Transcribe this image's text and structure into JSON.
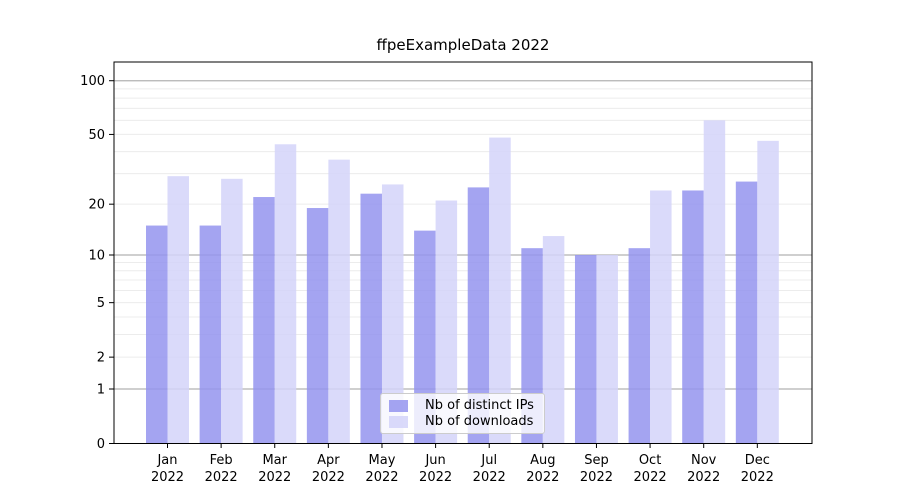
{
  "chart_data": {
    "type": "bar",
    "title": "ffpeExampleData 2022",
    "categories": [
      "Jan",
      "Feb",
      "Mar",
      "Apr",
      "May",
      "Jun",
      "Jul",
      "Aug",
      "Sep",
      "Oct",
      "Nov",
      "Dec"
    ],
    "x_axis": {
      "year": "2022"
    },
    "series": [
      {
        "name": "Nb of distinct IPs",
        "color": "#9494ef",
        "alpha": 0.85,
        "values": [
          15,
          15,
          22,
          19,
          23,
          14,
          25,
          11,
          10,
          11,
          24,
          27
        ]
      },
      {
        "name": "Nb of downloads",
        "color": "#d4d4f9",
        "alpha": 0.85,
        "values": [
          29,
          28,
          44,
          36,
          26,
          21,
          48,
          13,
          10,
          24,
          60,
          46
        ]
      }
    ],
    "y_axis": {
      "scale": "log1p",
      "tick_labels": [
        "0",
        "1",
        "2",
        "5",
        "10",
        "20",
        "50",
        "100"
      ],
      "tick_values": [
        0,
        1,
        2,
        5,
        10,
        20,
        50,
        100
      ],
      "major_gridlines": [
        1,
        10,
        100
      ],
      "minor_gridlines": [
        2,
        3,
        4,
        5,
        6,
        7,
        8,
        9,
        20,
        30,
        40,
        50,
        60,
        70,
        80,
        90
      ]
    },
    "legend": {
      "position": "bottom-center"
    },
    "grid": true,
    "colors": {
      "major_grid": "#b2b2b2",
      "minor_grid": "#ececec",
      "spine": "#000000",
      "background": "#ffffff",
      "text": "#000000"
    }
  }
}
